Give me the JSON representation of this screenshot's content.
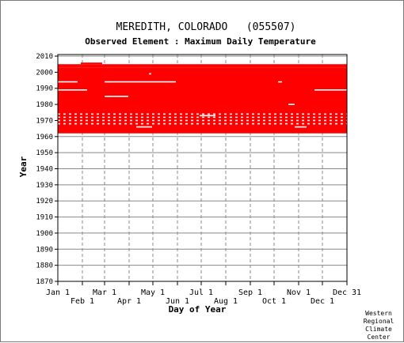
{
  "chart_data": {
    "type": "heatmap",
    "title": "MEREDITH, COLORADO   (055507)",
    "subtitle": "Observed Element : Maximum Daily Temperature",
    "xlabel": "Day of Year",
    "ylabel": "Year",
    "credit": [
      "Western",
      "Regional",
      "Climate",
      "Center"
    ],
    "y_ticks": [
      2010,
      2000,
      1990,
      1980,
      1970,
      1960,
      1950,
      1940,
      1930,
      1920,
      1910,
      1900,
      1890,
      1880,
      1870
    ],
    "ylim": [
      1870,
      2011
    ],
    "xlim": [
      1,
      366
    ],
    "x_ticks_top": [
      {
        "label": "Jan 1",
        "day": 1
      },
      {
        "label": "Mar 1",
        "day": 60
      },
      {
        "label": "May 1",
        "day": 121
      },
      {
        "label": "Jul 1",
        "day": 182
      },
      {
        "label": "Sep 1",
        "day": 244
      },
      {
        "label": "Nov 1",
        "day": 305
      },
      {
        "label": "Dec 31",
        "day": 366
      }
    ],
    "x_ticks_bottom": [
      {
        "label": "Feb 1",
        "day": 32
      },
      {
        "label": "Apr 1",
        "day": 91
      },
      {
        "label": "Jun 1",
        "day": 152
      },
      {
        "label": "Aug 1",
        "day": 213
      },
      {
        "label": "Oct 1",
        "day": 274
      },
      {
        "label": "Dec 1",
        "day": 335
      }
    ],
    "grid": true,
    "data_color": "#ff0000",
    "record_start_year": 1962,
    "record_end_year": 2006,
    "main_coverage": {
      "years": [
        1962,
        2003
      ],
      "days": [
        1,
        366
      ]
    },
    "partial_coverage": [
      {
        "years": [
          2003,
          2005
        ],
        "days": [
          1,
          366
        ]
      },
      {
        "years": [
          2005,
          2006
        ],
        "days": [
          30,
          57
        ]
      }
    ],
    "missing_rows": [
      {
        "year": 1994,
        "days": [
          [
            1,
            26
          ],
          [
            60,
            150
          ],
          [
            279,
            284
          ]
        ]
      },
      {
        "year": 1989,
        "days": [
          [
            1,
            38
          ],
          [
            325,
            366
          ]
        ]
      },
      {
        "year": 1985,
        "days": [
          [
            60,
            90
          ]
        ]
      },
      {
        "year": 1999,
        "days": [
          [
            116,
            119
          ]
        ]
      },
      {
        "year": 1980,
        "days": [
          [
            292,
            300
          ]
        ]
      },
      {
        "year": 1974,
        "days": [
          [
            1,
            366
          ]
        ]
      },
      {
        "year": 1972,
        "days": [
          [
            1,
            366
          ]
        ]
      },
      {
        "year": 1970,
        "days": [
          [
            1,
            366
          ]
        ]
      },
      {
        "year": 1968,
        "days": [
          [
            1,
            366
          ]
        ]
      },
      {
        "year": 1966,
        "days": [
          [
            100,
            120
          ],
          [
            300,
            315
          ]
        ]
      },
      {
        "year": 1973,
        "days": [
          [
            180,
            200
          ]
        ]
      }
    ]
  }
}
